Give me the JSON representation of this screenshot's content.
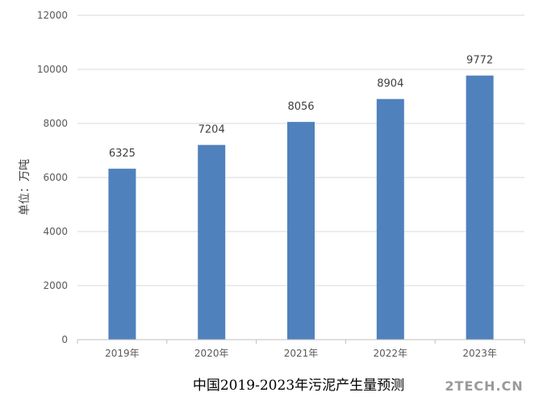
{
  "chart_data": {
    "type": "bar",
    "title": "中国2019-2023年污泥产生量预测",
    "xlabel": "",
    "ylabel": "单位：万吨",
    "categories": [
      "2019年",
      "2020年",
      "2021年",
      "2022年",
      "2023年"
    ],
    "values": [
      6325,
      7204,
      8056,
      8904,
      9772
    ],
    "ylim": [
      0,
      12000
    ],
    "yticks": [
      0,
      2000,
      4000,
      6000,
      8000,
      10000,
      12000
    ],
    "grid": true,
    "legend": "none",
    "bar_color": "#4f81bd",
    "gridline_color": "#d9d9d9",
    "data_labels": true
  },
  "watermark": "2TECH.CN"
}
